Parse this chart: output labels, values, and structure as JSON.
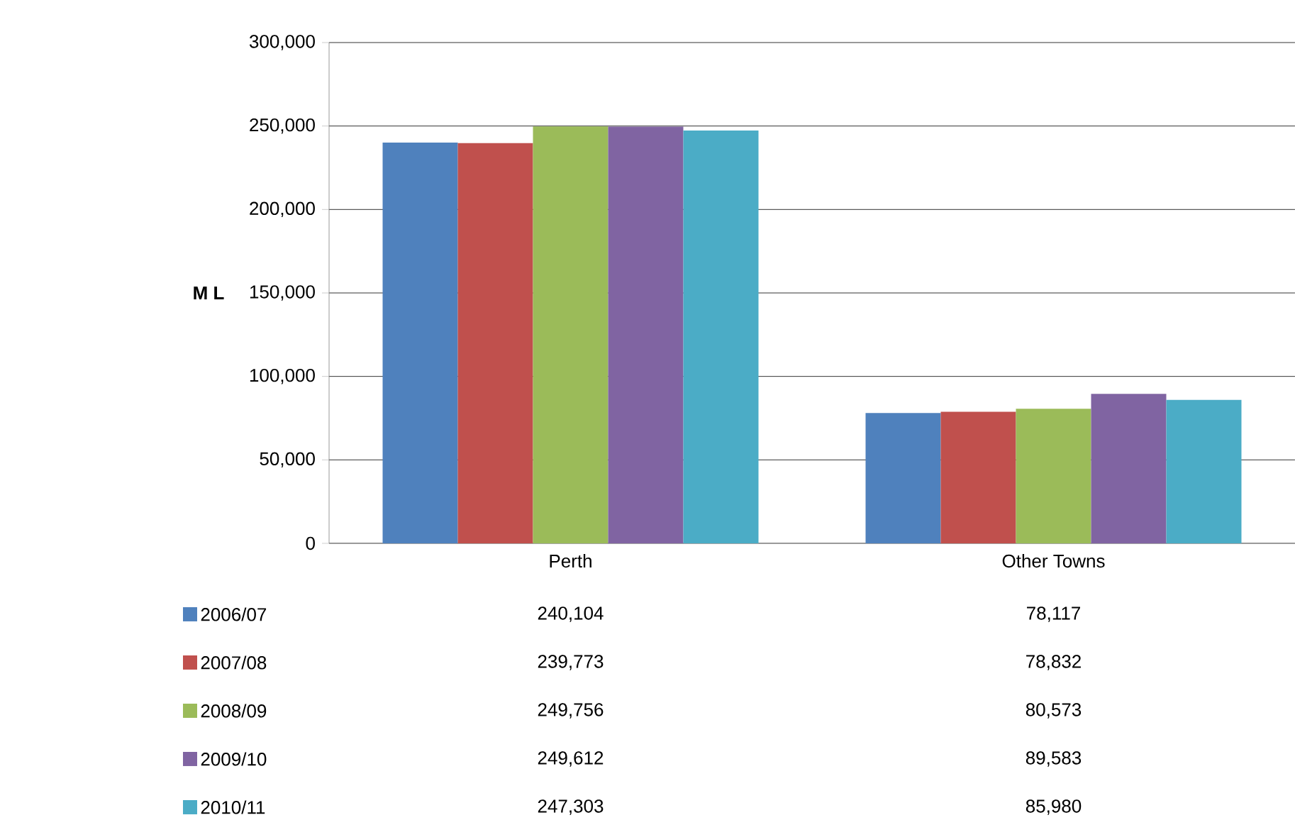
{
  "chart_data": {
    "type": "bar",
    "ylabel": "M L",
    "categories": [
      "Perth",
      "Other Towns"
    ],
    "series": [
      {
        "name": "2006/07",
        "color": "#4f81bd",
        "values": [
          240104,
          78117
        ],
        "value_labels": [
          "240,104",
          "78,117"
        ]
      },
      {
        "name": "2007/08",
        "color": "#c0504d",
        "values": [
          239773,
          78832
        ],
        "value_labels": [
          "239,773",
          "78,832"
        ]
      },
      {
        "name": "2008/09",
        "color": "#9bbb59",
        "values": [
          249756,
          80573
        ],
        "value_labels": [
          "249,756",
          "80,573"
        ]
      },
      {
        "name": "2009/10",
        "color": "#8064a2",
        "values": [
          249612,
          89583
        ],
        "value_labels": [
          "249,612",
          "89,583"
        ]
      },
      {
        "name": "2010/11",
        "color": "#4bacc6",
        "values": [
          247303,
          85980
        ],
        "value_labels": [
          "247,303",
          "85,980"
        ]
      }
    ],
    "ylim": [
      0,
      300000
    ],
    "yticks": [
      {
        "value": 0,
        "label": "0"
      },
      {
        "value": 50000,
        "label": "50,000"
      },
      {
        "value": 100000,
        "label": "100,000"
      },
      {
        "value": 150000,
        "label": "150,000"
      },
      {
        "value": 200000,
        "label": "200,000"
      },
      {
        "value": 250000,
        "label": "250,000"
      },
      {
        "value": 300000,
        "label": "300,000"
      }
    ],
    "grid": "y",
    "legend": "bottom"
  }
}
